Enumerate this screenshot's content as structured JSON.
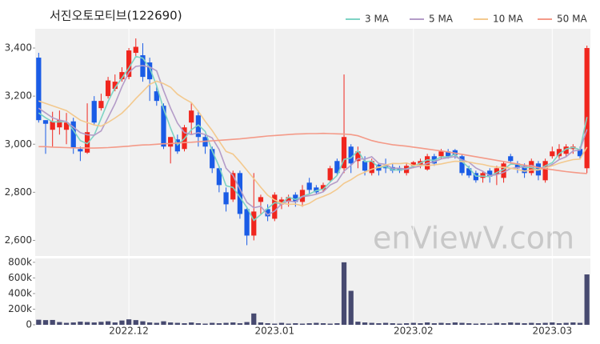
{
  "chart_data": {
    "type": "candlestick",
    "title": "서진오토모티브(122690)",
    "watermark": "enViewV.com",
    "up_color": "#f0261e",
    "down_color": "#1a5ce6",
    "volume_color": "#474a70",
    "categories": [
      null,
      null,
      null,
      null,
      null,
      null,
      null,
      null,
      null,
      null,
      null,
      null,
      null,
      "2022.12",
      null,
      null,
      null,
      null,
      null,
      null,
      null,
      null,
      null,
      null,
      null,
      null,
      null,
      null,
      null,
      null,
      null,
      null,
      null,
      null,
      "2023.01",
      null,
      null,
      null,
      null,
      null,
      null,
      null,
      null,
      null,
      null,
      null,
      null,
      null,
      null,
      null,
      null,
      null,
      null,
      null,
      "2023.02",
      null,
      null,
      null,
      null,
      null,
      null,
      null,
      null,
      null,
      null,
      null,
      null,
      null,
      null,
      null,
      null,
      null,
      null,
      null,
      "2023.03",
      null,
      null,
      null,
      null,
      null
    ],
    "open": [
      3360,
      3100,
      3060,
      3070,
      3060,
      3095,
      2980,
      2965,
      3180,
      3150,
      3200,
      3230,
      3270,
      3280,
      3380,
      3370,
      3340,
      3220,
      3160,
      2990,
      3020,
      2980,
      3090,
      3120,
      3030,
      2980,
      2900,
      2800,
      2770,
      2880,
      2730,
      2620,
      2760,
      2730,
      2690,
      2750,
      2760,
      2790,
      2760,
      2840,
      2820,
      2810,
      2850,
      2930,
      2900,
      2990,
      2930,
      2930,
      2880,
      2915,
      2910,
      2905,
      2900,
      2880,
      2910,
      2915,
      2895,
      2950,
      2950,
      2970,
      2975,
      2950,
      2900,
      2880,
      2860,
      2890,
      2875,
      2860,
      2950,
      2920,
      2910,
      2880,
      2920,
      2850,
      2950,
      2950,
      2960,
      2980,
      2980,
      2900
    ],
    "high": [
      3380,
      3100,
      3135,
      3140,
      3130,
      3110,
      2990,
      3170,
      3200,
      3210,
      3280,
      3290,
      3320,
      3400,
      3440,
      3420,
      3360,
      3240,
      3170,
      3030,
      3040,
      3080,
      3170,
      3140,
      3040,
      2990,
      2910,
      2820,
      2890,
      2890,
      2740,
      2880,
      2790,
      2750,
      2800,
      2780,
      2790,
      2800,
      2830,
      2860,
      2830,
      2840,
      2910,
      2940,
      3290,
      3000,
      2990,
      2950,
      2940,
      2920,
      2940,
      2920,
      2910,
      2920,
      2930,
      2940,
      2960,
      2960,
      2980,
      2980,
      2980,
      2960,
      2910,
      2890,
      2890,
      2900,
      2910,
      2930,
      2960,
      2930,
      2920,
      2940,
      2930,
      2940,
      2990,
      3000,
      3000,
      3000,
      2990,
      3410
    ],
    "low": [
      3090,
      2960,
      2990,
      3040,
      3000,
      2960,
      2930,
      2960,
      3080,
      3140,
      3190,
      3220,
      3260,
      3270,
      3360,
      3260,
      3180,
      3160,
      2980,
      2920,
      2960,
      2970,
      3040,
      2990,
      2960,
      2880,
      2800,
      2720,
      2760,
      2690,
      2580,
      2600,
      2710,
      2680,
      2680,
      2730,
      2740,
      2740,
      2740,
      2790,
      2790,
      2800,
      2840,
      2870,
      2880,
      2880,
      2900,
      2870,
      2870,
      2870,
      2880,
      2880,
      2880,
      2870,
      2900,
      2900,
      2890,
      2910,
      2940,
      2940,
      2940,
      2870,
      2860,
      2840,
      2840,
      2840,
      2830,
      2840,
      2920,
      2880,
      2860,
      2870,
      2850,
      2840,
      2940,
      2940,
      2950,
      2960,
      2940,
      2880
    ],
    "close": [
      3100,
      3085,
      3095,
      3100,
      3090,
      2985,
      2970,
      3050,
      3090,
      3180,
      3265,
      3260,
      3300,
      3390,
      3405,
      3280,
      3270,
      3180,
      2990,
      3030,
      2970,
      3070,
      3140,
      3030,
      2990,
      2900,
      2830,
      2750,
      2880,
      2710,
      2620,
      2720,
      2780,
      2700,
      2790,
      2770,
      2780,
      2760,
      2810,
      2810,
      2800,
      2830,
      2900,
      2880,
      3030,
      2920,
      2970,
      2890,
      2930,
      2890,
      2900,
      2890,
      2890,
      2910,
      2925,
      2930,
      2950,
      2920,
      2970,
      2950,
      2955,
      2880,
      2870,
      2850,
      2880,
      2865,
      2900,
      2920,
      2930,
      2900,
      2880,
      2930,
      2870,
      2930,
      2970,
      2980,
      2990,
      2990,
      2950,
      3400
    ],
    "volume": [
      65000,
      60000,
      62000,
      35000,
      25000,
      30000,
      40000,
      35000,
      30000,
      38000,
      45000,
      30000,
      55000,
      70000,
      60000,
      45000,
      30000,
      25000,
      45000,
      30000,
      25000,
      20000,
      30000,
      20000,
      15000,
      25000,
      20000,
      25000,
      30000,
      20000,
      35000,
      145000,
      30000,
      20000,
      15000,
      25000,
      15000,
      20000,
      15000,
      20000,
      25000,
      20000,
      15000,
      20000,
      800000,
      435000,
      40000,
      30000,
      25000,
      20000,
      25000,
      20000,
      15000,
      20000,
      25000,
      20000,
      30000,
      20000,
      25000,
      20000,
      30000,
      25000,
      20000,
      15000,
      20000,
      15000,
      25000,
      20000,
      30000,
      25000,
      20000,
      25000,
      20000,
      25000,
      30000,
      20000,
      25000,
      30000,
      25000,
      645000
    ],
    "series": [
      {
        "name": "3 MA",
        "color": "#7ed3c4",
        "values": [
          3130,
          3110,
          3093,
          3093,
          3095,
          3058,
          3015,
          3002,
          3037,
          3107,
          3178,
          3235,
          3275,
          3317,
          3365,
          3358,
          3318,
          3243,
          3147,
          3067,
          2997,
          3023,
          3060,
          3080,
          3053,
          2973,
          2907,
          2827,
          2820,
          2780,
          2737,
          2683,
          2707,
          2733,
          2757,
          2753,
          2780,
          2770,
          2783,
          2793,
          2807,
          2813,
          2843,
          2870,
          2937,
          2943,
          2973,
          2927,
          2930,
          2903,
          2907,
          2893,
          2893,
          2897,
          2908,
          2922,
          2935,
          2933,
          2947,
          2947,
          2958,
          2928,
          2902,
          2867,
          2867,
          2865,
          2882,
          2895,
          2917,
          2917,
          2903,
          2903,
          2893,
          2910,
          2923,
          2960,
          2980,
          2987,
          2977,
          3113
        ]
      },
      {
        "name": "5 MA",
        "color": "#b49cc8",
        "values": [
          3150,
          3130,
          3110,
          3100,
          3094,
          3071,
          3048,
          3039,
          3037,
          3055,
          3111,
          3169,
          3239,
          3299,
          3324,
          3327,
          3321,
          3305,
          3223,
          3150,
          3088,
          3048,
          3040,
          3048,
          3040,
          3026,
          2978,
          2900,
          2870,
          2814,
          2758,
          2736,
          2742,
          2706,
          2722,
          2752,
          2764,
          2760,
          2782,
          2786,
          2792,
          2802,
          2830,
          2844,
          2888,
          2912,
          2940,
          2938,
          2948,
          2920,
          2916,
          2900,
          2900,
          2896,
          2903,
          2909,
          2921,
          2927,
          2939,
          2944,
          2949,
          2935,
          2925,
          2901,
          2887,
          2869,
          2873,
          2883,
          2899,
          2903,
          2906,
          2912,
          2902,
          2902,
          2916,
          2936,
          2948,
          2972,
          2976,
          3062
        ]
      },
      {
        "name": "10 MA",
        "color": "#f3c98e",
        "values": [
          3180,
          3170,
          3160,
          3150,
          3140,
          3120,
          3100,
          3090,
          3080,
          3075,
          3091,
          3109,
          3129,
          3158,
          3190,
          3219,
          3249,
          3262,
          3252,
          3237,
          3208,
          3189,
          3173,
          3137,
          3095,
          3057,
          3013,
          2970,
          2959,
          2927,
          2892,
          2857,
          2821,
          2788,
          2768,
          2755,
          2750,
          2751,
          2744,
          2754,
          2772,
          2783,
          2795,
          2813,
          2837,
          2852,
          2871,
          2884,
          2896,
          2904,
          2914,
          2920,
          2919,
          2922,
          2912,
          2913,
          2911,
          2914,
          2918,
          2924,
          2929,
          2928,
          2926,
          2920,
          2916,
          2909,
          2904,
          2904,
          2900,
          2895,
          2888,
          2893,
          2893,
          2901,
          2910,
          2921,
          2929,
          2936,
          2938,
          2988
        ]
      },
      {
        "name": "50 MA",
        "color": "#f49a88",
        "values": [
          2990,
          2990,
          2988,
          2987,
          2986,
          2985,
          2985,
          2984,
          2984,
          2985,
          2986,
          2988,
          2990,
          2992,
          2995,
          2997,
          2998,
          3000,
          3002,
          3003,
          3005,
          3007,
          3008,
          3010,
          3012,
          3014,
          3016,
          3018,
          3020,
          3022,
          3025,
          3028,
          3031,
          3034,
          3036,
          3038,
          3040,
          3042,
          3043,
          3044,
          3044,
          3045,
          3044,
          3043,
          3042,
          3040,
          3035,
          3025,
          3015,
          3008,
          3003,
          2998,
          2995,
          2992,
          2988,
          2984,
          2980,
          2976,
          2972,
          2968,
          2963,
          2958,
          2953,
          2948,
          2943,
          2938,
          2933,
          2928,
          2923,
          2918,
          2913,
          2908,
          2903,
          2898,
          2894,
          2890,
          2886,
          2883,
          2880,
          2878
        ]
      }
    ],
    "ylim": [
      2535,
      3480
    ],
    "yticks": [
      {
        "value": 2600,
        "label": "2,600"
      },
      {
        "value": 2800,
        "label": "2,800"
      },
      {
        "value": 3000,
        "label": "3,000"
      },
      {
        "value": 3200,
        "label": "3,200"
      },
      {
        "value": 3400,
        "label": "3,400"
      }
    ],
    "volume_ylim": [
      0,
      850000
    ],
    "volume_yticks": [
      0,
      {
        "value": 200000,
        "label": "200k"
      },
      {
        "value": 400000,
        "label": "400k"
      },
      {
        "value": 600000,
        "label": "600k"
      },
      {
        "value": 800000,
        "label": "800k"
      }
    ]
  }
}
